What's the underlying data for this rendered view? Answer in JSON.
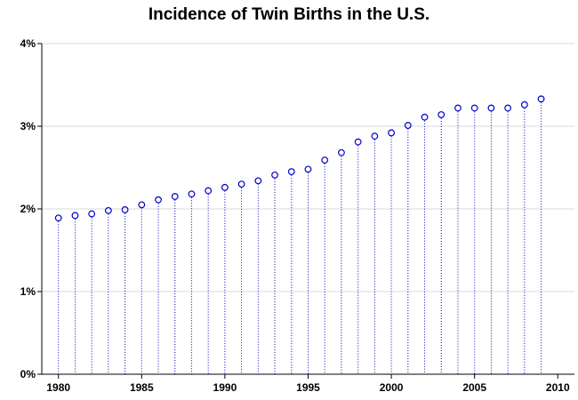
{
  "chart_data": {
    "type": "scatter",
    "title": "Incidence of Twin Births in the U.S.",
    "xlabel": "",
    "ylabel": "",
    "xlim": [
      1979,
      2011
    ],
    "ylim": [
      0,
      4
    ],
    "x_ticks": [
      1980,
      1985,
      1990,
      1995,
      2000,
      2005,
      2010
    ],
    "y_ticks": [
      0,
      1,
      2,
      3,
      4
    ],
    "y_tick_labels": [
      "0%",
      "1%",
      "2%",
      "3%",
      "4%"
    ],
    "grid": "horizontal",
    "marker": "open-circle",
    "drop_lines": "dotted",
    "colors": {
      "marker": "#0000cc",
      "grid": "#d8d8d8",
      "axis": "#000000"
    },
    "series": [
      {
        "x": [
          1980,
          1981,
          1982,
          1983,
          1984,
          1985,
          1986,
          1987,
          1988,
          1989,
          1990,
          1991,
          1992,
          1993,
          1994,
          1995,
          1996,
          1997,
          1998,
          1999,
          2000,
          2001,
          2002,
          2003,
          2004,
          2005,
          2006,
          2007,
          2008,
          2009
        ],
        "values": [
          1.89,
          1.92,
          1.94,
          1.98,
          1.99,
          2.05,
          2.11,
          2.15,
          2.18,
          2.22,
          2.26,
          2.3,
          2.34,
          2.41,
          2.45,
          2.48,
          2.59,
          2.68,
          2.81,
          2.88,
          2.92,
          3.01,
          3.11,
          3.14,
          3.22,
          3.22,
          3.22,
          3.22,
          3.26,
          3.33
        ]
      }
    ]
  }
}
